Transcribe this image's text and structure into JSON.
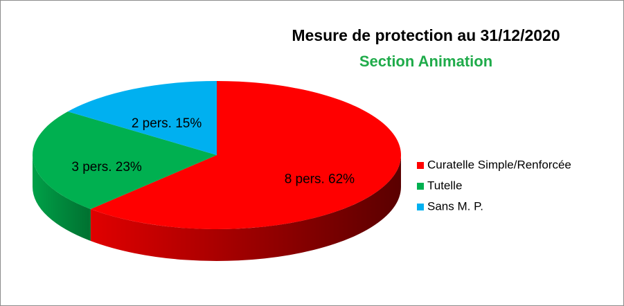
{
  "chart_data": {
    "type": "pie",
    "title": "Mesure de protection au 31/12/2020",
    "subtitle": "Section Animation",
    "categories": [
      "Curatelle Simple/Renforcée",
      "Tutelle",
      "Sans M. P."
    ],
    "values": [
      62,
      23,
      15
    ],
    "value_labels": [
      "8 pers. 62%",
      "3 pers. 23%",
      "2 pers. 15%"
    ],
    "colors": [
      "#ff0000",
      "#00b050",
      "#00b0f0"
    ],
    "legend": "right"
  }
}
